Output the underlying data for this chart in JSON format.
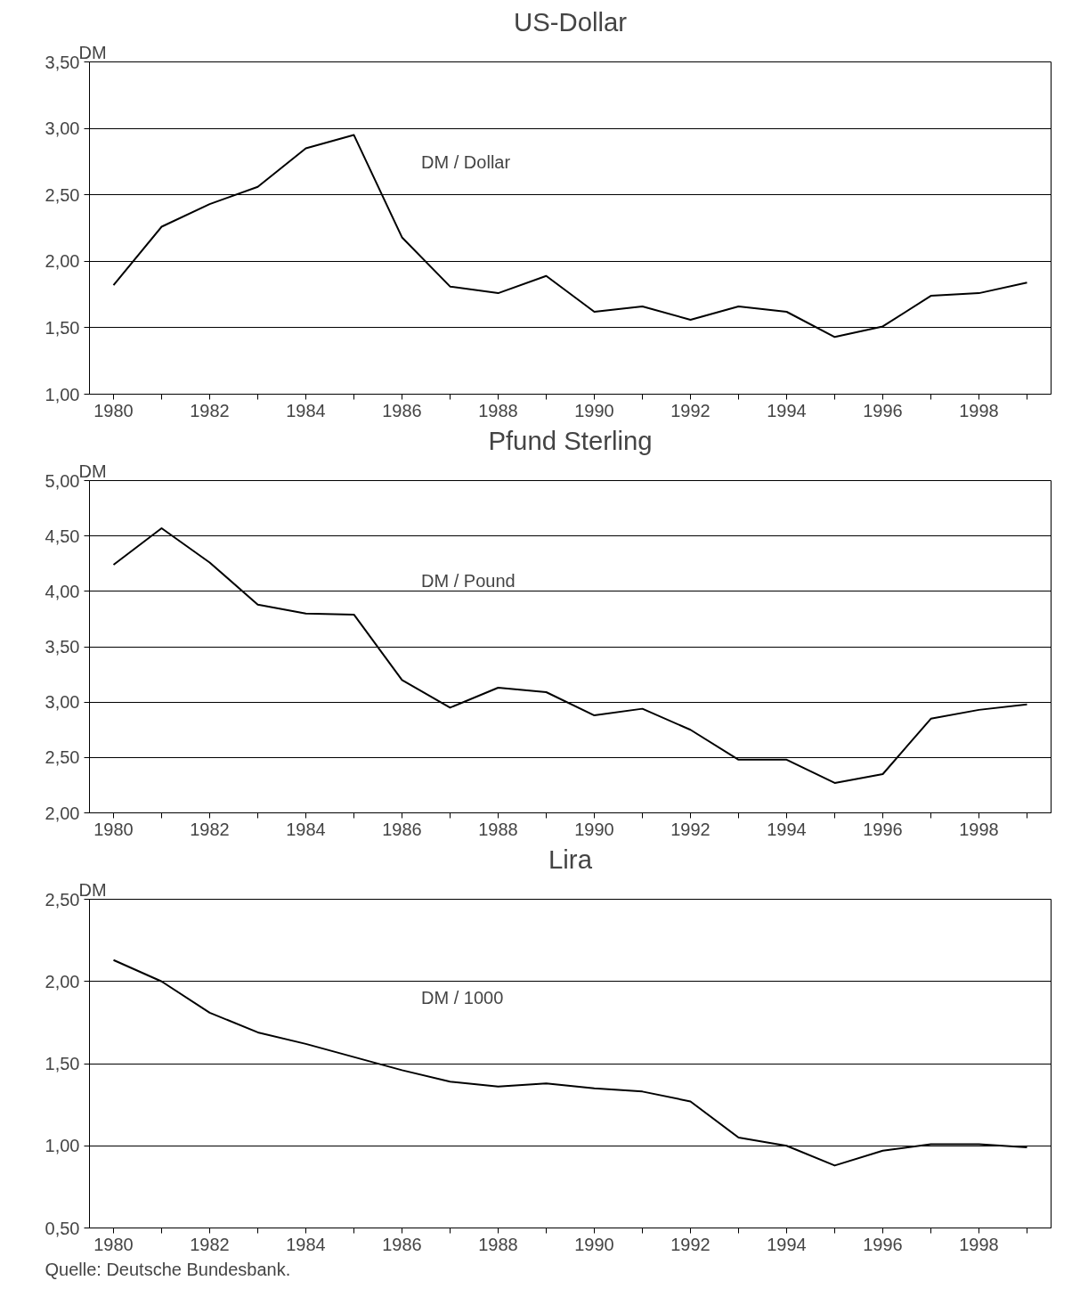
{
  "chart_data": [
    {
      "type": "line",
      "title": "US-Dollar",
      "ylabel": "DM",
      "categories": [
        "1980",
        null,
        "1982",
        null,
        "1984",
        null,
        "1986",
        null,
        "1988",
        null,
        "1990",
        null,
        "1992",
        null,
        "1994",
        null,
        "1996",
        null,
        "1998",
        null
      ],
      "series": [
        {
          "name": "DM / Dollar",
          "color": "#000000",
          "values": [
            1.82,
            2.26,
            2.43,
            2.56,
            2.85,
            2.95,
            2.18,
            1.81,
            1.76,
            1.89,
            1.62,
            1.66,
            1.56,
            1.66,
            1.62,
            1.43,
            1.51,
            1.74,
            1.76,
            1.84
          ]
        }
      ],
      "ylim": [
        1.0,
        3.5
      ],
      "yticks": [
        {
          "value": 1.0,
          "label": "1,00"
        },
        {
          "value": 1.5,
          "label": "1,50"
        },
        {
          "value": 2.0,
          "label": "2,00"
        },
        {
          "value": 2.5,
          "label": "2,50"
        },
        {
          "value": 3.0,
          "label": "3,00"
        },
        {
          "value": 3.5,
          "label": "3,50"
        }
      ],
      "grid": "y",
      "legend": false,
      "marker": "none",
      "line_style": "solid"
    },
    {
      "type": "line",
      "title": "Pfund Sterling",
      "ylabel": "DM",
      "categories": [
        "1980",
        null,
        "1982",
        null,
        "1984",
        null,
        "1986",
        null,
        "1988",
        null,
        "1990",
        null,
        "1992",
        null,
        "1994",
        null,
        "1996",
        null,
        "1998",
        null
      ],
      "series": [
        {
          "name": "DM / Pound",
          "color": "#000000",
          "values": [
            4.24,
            4.57,
            4.26,
            3.88,
            3.8,
            3.79,
            3.2,
            2.95,
            3.13,
            3.09,
            2.88,
            2.94,
            2.75,
            2.48,
            2.48,
            2.27,
            2.35,
            2.85,
            2.93,
            2.98
          ]
        }
      ],
      "ylim": [
        2.0,
        5.0
      ],
      "yticks": [
        {
          "value": 2.0,
          "label": "2,00"
        },
        {
          "value": 2.5,
          "label": "2,50"
        },
        {
          "value": 3.0,
          "label": "3,00"
        },
        {
          "value": 3.5,
          "label": "3,50"
        },
        {
          "value": 4.0,
          "label": "4,00"
        },
        {
          "value": 4.5,
          "label": "4,50"
        },
        {
          "value": 5.0,
          "label": "5,00"
        }
      ],
      "grid": "y",
      "legend": false,
      "marker": "none",
      "line_style": "solid"
    },
    {
      "type": "line",
      "title": "Lira",
      "ylabel": "DM",
      "categories": [
        "1980",
        null,
        "1982",
        null,
        "1984",
        null,
        "1986",
        null,
        "1988",
        null,
        "1990",
        null,
        "1992",
        null,
        "1994",
        null,
        "1996",
        null,
        "1998",
        null
      ],
      "series": [
        {
          "name": "DM / 1000",
          "color": "#000000",
          "values": [
            2.13,
            2.0,
            1.81,
            1.69,
            1.62,
            1.54,
            1.46,
            1.39,
            1.36,
            1.38,
            1.35,
            1.33,
            1.27,
            1.05,
            1.0,
            0.88,
            0.97,
            1.01,
            1.01,
            0.99
          ]
        }
      ],
      "ylim": [
        0.5,
        2.5
      ],
      "yticks": [
        {
          "value": 0.5,
          "label": "0,50"
        },
        {
          "value": 1.0,
          "label": "1,00"
        },
        {
          "value": 1.5,
          "label": "1,50"
        },
        {
          "value": 2.0,
          "label": "2,00"
        },
        {
          "value": 2.5,
          "label": "2,50"
        }
      ],
      "grid": "y",
      "legend": false,
      "marker": "none",
      "line_style": "solid",
      "annotations": [
        "Quelle: Deutsche Bundesbank."
      ]
    }
  ]
}
